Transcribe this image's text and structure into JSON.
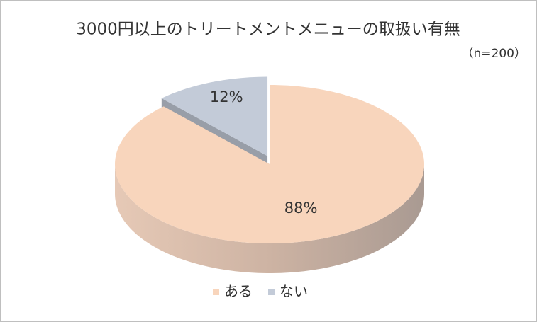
{
  "chart_data": {
    "type": "pie",
    "title": "3000円以上のトリートメントメニューの取扱い有無",
    "subtitle": "（n=200）",
    "categories": [
      "ある",
      "ない"
    ],
    "values": [
      88,
      12
    ],
    "value_labels": [
      "88%",
      "12%"
    ],
    "colors": [
      "#f8d5bc",
      "#c3cbd8"
    ],
    "legend": "bottom"
  }
}
